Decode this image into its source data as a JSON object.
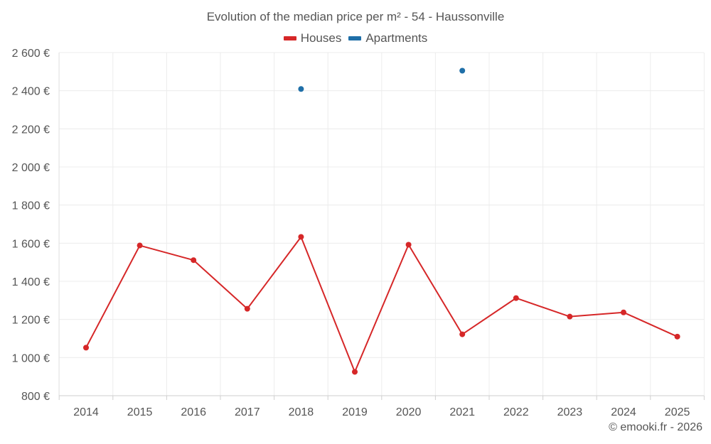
{
  "chart_data": {
    "type": "line",
    "title": "Evolution of the median price per m² - 54 - Haussonville",
    "categories": [
      "2014",
      "2015",
      "2016",
      "2017",
      "2018",
      "2019",
      "2020",
      "2021",
      "2022",
      "2023",
      "2024",
      "2025"
    ],
    "ylim": [
      800,
      2600
    ],
    "yticks": [
      800,
      1000,
      1200,
      1400,
      1600,
      1800,
      2000,
      2200,
      2400,
      2600
    ],
    "ytick_labels": [
      "800 €",
      "1 000 €",
      "1 200 €",
      "1 400 €",
      "1 600 €",
      "1 800 €",
      "2 000 €",
      "2 200 €",
      "2 400 €",
      "2 600 €"
    ],
    "grid": true,
    "legend_position": "top-center",
    "series": [
      {
        "name": "Houses",
        "color": "#d62728",
        "values": [
          1052,
          1588,
          1511,
          1256,
          1633,
          925,
          1592,
          1122,
          1312,
          1215,
          1237,
          1110
        ]
      },
      {
        "name": "Apartments",
        "color": "#1f6fa8",
        "values": [
          null,
          null,
          null,
          null,
          2409,
          null,
          null,
          2505,
          null,
          null,
          null,
          null
        ]
      }
    ]
  },
  "credit": "© emooki.fr - 2026"
}
